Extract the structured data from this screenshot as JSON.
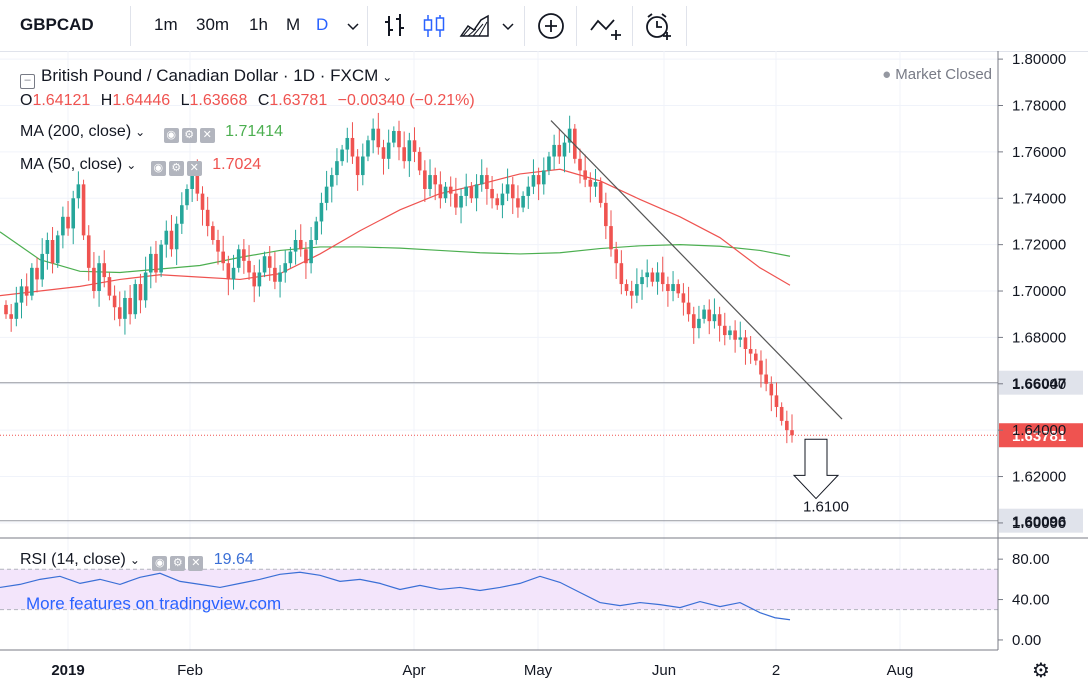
{
  "toolbar": {
    "symbol": "GBPCAD",
    "intervals": [
      "1m",
      "30m",
      "1h",
      "M",
      "D"
    ],
    "active_interval": "D",
    "icons": [
      "bar-style-icon",
      "candle-style-icon",
      "area-style-icon",
      "add-indicator-icon",
      "compare-icon",
      "alert-icon"
    ]
  },
  "legend": {
    "title": "British Pound / Canadian Dollar · 1D · FXCM",
    "open_label": "O",
    "open": "1.64121",
    "high_label": "H",
    "high": "1.64446",
    "low_label": "L",
    "low": "1.63668",
    "close_label": "C",
    "close": "1.63781",
    "change": "−0.00340 (−0.21%)",
    "ma200_label": "MA (200, close)",
    "ma200_value": "1.71414",
    "ma50_label": "MA (50, close)",
    "ma50_value": "1.7024",
    "market_status": "Market Closed"
  },
  "rsi": {
    "label": "RSI (14, close)",
    "value": "19.64"
  },
  "promo": "More features on tradingview.com",
  "colors": {
    "up": "#26a69a",
    "down": "#ef5350",
    "ma200": "#4caf50",
    "ma50": "#ef5350",
    "rsi": "#3a6fd6",
    "trendline": "#555555",
    "accent": "#2962ff"
  },
  "chart_data": {
    "type": "candlestick",
    "symbol": "GBPCAD",
    "price_axis_ticks": [
      1.8,
      1.78,
      1.76,
      1.74,
      1.72,
      1.7,
      1.68,
      1.66,
      1.64,
      1.62,
      1.6
    ],
    "price_axis_tick_labels": [
      "1.80000",
      "1.78000",
      "1.76000",
      "1.74000",
      "1.72000",
      "1.70000",
      "1.68000",
      "1.66000",
      "1.64000",
      "1.62000",
      "1.60000"
    ],
    "ylim": [
      1.5935,
      1.8035
    ],
    "x_axis_labels": [
      "2019",
      "Feb",
      "Apr",
      "May",
      "Jun",
      "2",
      "Aug"
    ],
    "horizontal_levels": [
      {
        "value": 1.66047,
        "label": "1.66047",
        "style": "solid-gray"
      },
      {
        "value": 1.60096,
        "label": "1.60096",
        "style": "solid-gray"
      },
      {
        "value": 1.63781,
        "label": "1.63781",
        "style": "dotted-red-current"
      }
    ],
    "target_annotation": {
      "label": "1.6100",
      "value": 1.61
    },
    "trendline": {
      "from": {
        "date": "2019-05-01",
        "price": 1.7735
      },
      "to": {
        "date": "2019-07-16",
        "price": 1.6448
      }
    },
    "candles_close": [
      1.69,
      1.688,
      1.695,
      1.702,
      1.698,
      1.71,
      1.705,
      1.716,
      1.722,
      1.712,
      1.724,
      1.732,
      1.727,
      1.74,
      1.746,
      1.724,
      1.71,
      1.7,
      1.712,
      1.706,
      1.698,
      1.693,
      1.688,
      1.697,
      1.69,
      1.703,
      1.696,
      1.708,
      1.716,
      1.708,
      1.72,
      1.726,
      1.718,
      1.729,
      1.737,
      1.744,
      1.75,
      1.742,
      1.735,
      1.728,
      1.722,
      1.717,
      1.712,
      1.705,
      1.71,
      1.718,
      1.713,
      1.708,
      1.702,
      1.708,
      1.715,
      1.71,
      1.704,
      1.708,
      1.712,
      1.717,
      1.722,
      1.718,
      1.712,
      1.722,
      1.73,
      1.738,
      1.745,
      1.75,
      1.756,
      1.761,
      1.766,
      1.758,
      1.75,
      1.758,
      1.765,
      1.77,
      1.762,
      1.757,
      1.764,
      1.769,
      1.762,
      1.756,
      1.765,
      1.76,
      1.752,
      1.744,
      1.75,
      1.746,
      1.74,
      1.745,
      1.742,
      1.736,
      1.741,
      1.745,
      1.74,
      1.746,
      1.75,
      1.744,
      1.74,
      1.737,
      1.742,
      1.746,
      1.74,
      1.736,
      1.741,
      1.745,
      1.75,
      1.746,
      1.752,
      1.758,
      1.763,
      1.758,
      1.764,
      1.77,
      1.757,
      1.752,
      1.748,
      1.745,
      1.747,
      1.738,
      1.728,
      1.718,
      1.712,
      1.703,
      1.7,
      1.698,
      1.703,
      1.706,
      1.708,
      1.704,
      1.708,
      1.703,
      1.7,
      1.703,
      1.699,
      1.695,
      1.69,
      1.684,
      1.688,
      1.692,
      1.687,
      1.69,
      1.685,
      1.681,
      1.683,
      1.679,
      1.68,
      1.675,
      1.673,
      1.67,
      1.664,
      1.66,
      1.655,
      1.65,
      1.644,
      1.64,
      1.6378
    ],
    "ma200": [
      [
        0,
        1.7255
      ],
      [
        40,
        1.7135
      ],
      [
        80,
        1.7085
      ],
      [
        120,
        1.708
      ],
      [
        160,
        1.7095
      ],
      [
        200,
        1.711
      ],
      [
        240,
        1.7145
      ],
      [
        280,
        1.7175
      ],
      [
        320,
        1.719
      ],
      [
        360,
        1.719
      ],
      [
        400,
        1.7185
      ],
      [
        440,
        1.7175
      ],
      [
        480,
        1.7165
      ],
      [
        520,
        1.716
      ],
      [
        560,
        1.7165
      ],
      [
        600,
        1.7183
      ],
      [
        640,
        1.7195
      ],
      [
        680,
        1.72
      ],
      [
        720,
        1.7193
      ],
      [
        760,
        1.7175
      ],
      [
        790,
        1.715
      ]
    ],
    "ma50": [
      [
        0,
        1.698
      ],
      [
        40,
        1.7
      ],
      [
        80,
        1.702
      ],
      [
        120,
        1.705
      ],
      [
        160,
        1.707
      ],
      [
        200,
        1.706
      ],
      [
        240,
        1.705
      ],
      [
        280,
        1.7075
      ],
      [
        320,
        1.716
      ],
      [
        360,
        1.726
      ],
      [
        400,
        1.735
      ],
      [
        440,
        1.742
      ],
      [
        480,
        1.746
      ],
      [
        520,
        1.7505
      ],
      [
        560,
        1.7525
      ],
      [
        600,
        1.7475
      ],
      [
        640,
        1.7395
      ],
      [
        680,
        1.732
      ],
      [
        720,
        1.723
      ],
      [
        760,
        1.71
      ],
      [
        790,
        1.7025
      ]
    ],
    "rsi_axis_ticks": [
      "80.00",
      "40.00",
      "0.00"
    ],
    "rsi_band": [
      30,
      70
    ],
    "rsi_values": [
      [
        0,
        52
      ],
      [
        20,
        55
      ],
      [
        40,
        60
      ],
      [
        60,
        63
      ],
      [
        80,
        56
      ],
      [
        100,
        60
      ],
      [
        120,
        55
      ],
      [
        140,
        62
      ],
      [
        160,
        66
      ],
      [
        180,
        58
      ],
      [
        200,
        55
      ],
      [
        220,
        52
      ],
      [
        240,
        56
      ],
      [
        260,
        60
      ],
      [
        280,
        65
      ],
      [
        300,
        67
      ],
      [
        320,
        64
      ],
      [
        340,
        58
      ],
      [
        360,
        60
      ],
      [
        380,
        56
      ],
      [
        400,
        50
      ],
      [
        420,
        54
      ],
      [
        440,
        50
      ],
      [
        460,
        52
      ],
      [
        480,
        49
      ],
      [
        500,
        52
      ],
      [
        520,
        56
      ],
      [
        540,
        63
      ],
      [
        560,
        57
      ],
      [
        580,
        47
      ],
      [
        600,
        37
      ],
      [
        620,
        34
      ],
      [
        640,
        37
      ],
      [
        660,
        35
      ],
      [
        680,
        32
      ],
      [
        700,
        38
      ],
      [
        720,
        33
      ],
      [
        740,
        37
      ],
      [
        760,
        27
      ],
      [
        775,
        22
      ],
      [
        790,
        20
      ]
    ],
    "rsi_ylim": [
      -5,
      95
    ]
  }
}
